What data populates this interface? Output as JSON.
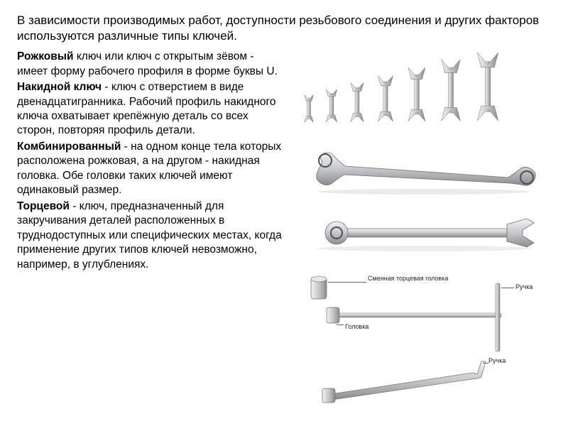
{
  "intro": "В зависимости производимых работ, доступности резьбового соединения и других факторов используются различные типы ключей.",
  "types": {
    "rozhkovy": {
      "name": "Рожковый",
      "desc": " ключ или ключ с открытым зёвом - имеет форму рабочего профиля в форме буквы U."
    },
    "nakidnoy": {
      "name": "Накидной ключ",
      "desc": " - ключ с отверстием в виде двенадцатигранника. Рабочий профиль накидного ключа охватывает крепёжную деталь со всех сторон, повторяя профиль детали."
    },
    "kombi": {
      "name": "Комбинированный",
      "desc": " - на одном конце тела которых расположена рожковая, а на другом - накидная головка. Обе головки таких ключей имеют одинаковый размер."
    },
    "tortsevoy": {
      "name": "Торцевой",
      "desc": " - ключ, предназначенный для закручивания деталей расположенных в труднодоступных или специфических местах, когда применение других типов ключей невозможно, например, в углублениях."
    }
  },
  "labels": {
    "socket": "Сменная торцевая головка",
    "head": "Головка",
    "handle": "Ручка"
  },
  "style": {
    "metal_light": "#e8e8ea",
    "metal_mid": "#c6c7ca",
    "metal_dark": "#8a8c90",
    "metal_shadow": "#5c5e62",
    "text_color": "#000000",
    "label_color": "#222222",
    "intro_fontsize": 17,
    "body_fontsize": 15.5,
    "label_fontsize": 9
  },
  "open_wrenches": {
    "count": 7,
    "heights": [
      42,
      50,
      60,
      70,
      82,
      94,
      104
    ]
  }
}
